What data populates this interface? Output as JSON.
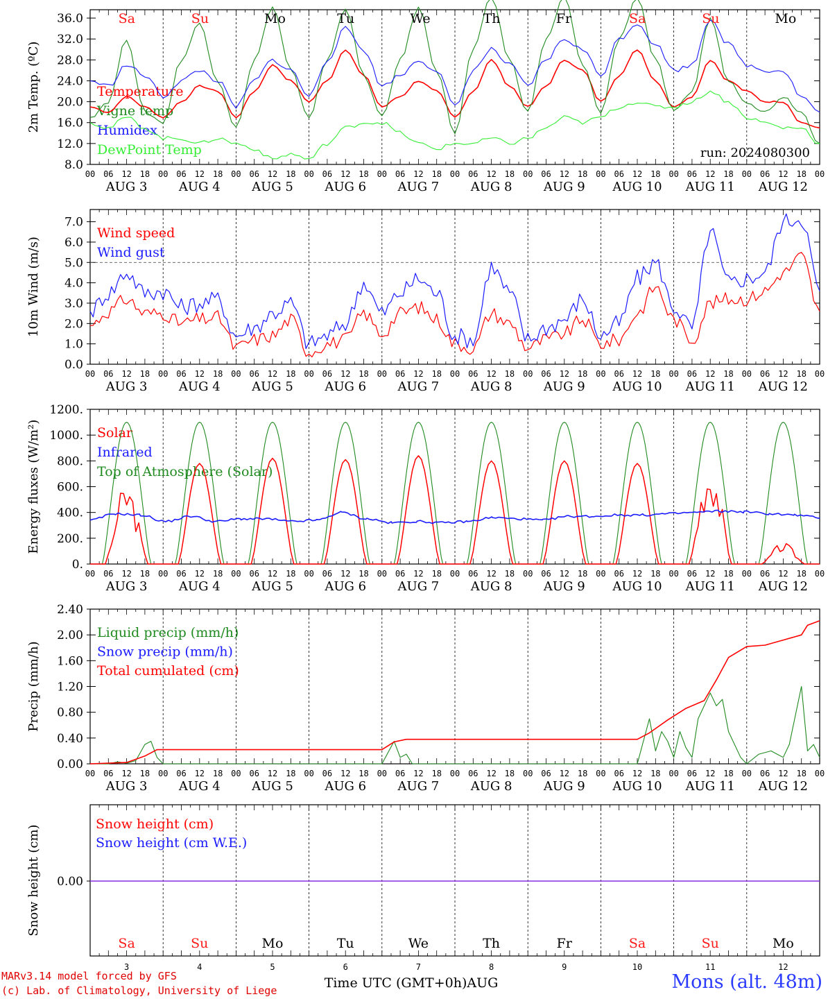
{
  "footer": {
    "credit_line1": "MARv3.14 model forced by GFS",
    "credit_line2": "(c) Lab. of Climatology, University of Liege",
    "station": "Mons (alt. 48m)",
    "xaxis_label": "Time UTC (GMT+0h)AUG"
  },
  "time_axis": {
    "hour_ticks": [
      "00",
      "06",
      "12",
      "18"
    ],
    "final_tick": "00",
    "day_labels": [
      "AUG  3",
      "AUG  4",
      "AUG  5",
      "AUG  6",
      "AUG  7",
      "AUG  8",
      "AUG  9",
      "AUG 10",
      "AUG 11",
      "AUG 12"
    ],
    "weekdays": [
      "Sa",
      "Su",
      "Mo",
      "Tu",
      "We",
      "Th",
      "Fr",
      "Sa",
      "Su",
      "Mo"
    ],
    "weekend_color": "#ff1a1a",
    "weekday_color": "#000000",
    "bottom_day_numbers": [
      "3",
      "4",
      "5",
      "6",
      "7",
      "8",
      "9",
      "10",
      "11",
      "12"
    ]
  },
  "colors": {
    "red": "#ff0000",
    "blue": "#1a1aff",
    "dark_green": "#1f8a1f",
    "light_green": "#33ee33",
    "purple": "#8a2be2"
  },
  "chart_data": [
    {
      "type": "line",
      "ylabel": "2m Temp. (ºC)",
      "ylim": [
        8,
        37.6
      ],
      "yticks": [
        "8.0",
        "12.0",
        "16.0",
        "20.0",
        "24.0",
        "28.0",
        "32.0",
        "36.0"
      ],
      "annotation": "run: 2024080300",
      "x": [
        0,
        6,
        12,
        18,
        24,
        30,
        36,
        42,
        48,
        54,
        60,
        66,
        72,
        78,
        84,
        90,
        96,
        102,
        108,
        114,
        120,
        126,
        132,
        138,
        144,
        150,
        156,
        162,
        168,
        174,
        180,
        186,
        192,
        198,
        204,
        210,
        216,
        222,
        228,
        234,
        240
      ],
      "series": [
        {
          "name": "Temperature",
          "color": "red",
          "values": [
            19,
            18,
            21,
            19,
            17,
            20,
            23,
            22,
            17,
            22,
            27,
            24,
            20,
            24,
            30,
            25,
            19,
            21,
            24,
            22,
            17,
            22,
            28,
            23,
            19,
            23,
            28,
            26,
            20,
            25,
            30,
            24,
            19,
            21,
            28,
            24,
            22,
            20,
            20,
            16,
            15
          ]
        },
        {
          "name": "Vigne temp",
          "color": "dark_green",
          "values": [
            17,
            20,
            32,
            18,
            16,
            28,
            35,
            24,
            15,
            28,
            38,
            26,
            17,
            28,
            38,
            25,
            17,
            28,
            38,
            26,
            14,
            30,
            40,
            28,
            18,
            32,
            40,
            27,
            18,
            32,
            40,
            28,
            18,
            22,
            36,
            24,
            20,
            18,
            21,
            18,
            12
          ]
        },
        {
          "name": "Humidex",
          "color": "blue",
          "values": [
            24,
            23,
            27,
            25,
            21,
            24,
            26,
            24,
            19,
            24,
            28,
            26,
            21,
            28,
            34,
            30,
            23,
            25,
            28,
            26,
            19,
            26,
            30,
            27,
            23,
            28,
            32,
            30,
            25,
            32,
            35,
            31,
            26,
            27,
            36,
            31,
            27,
            26,
            26,
            21,
            18
          ]
        },
        {
          "name": "DewPoint Temp",
          "color": "light_green",
          "values": [
            16,
            15,
            17,
            15,
            13,
            13,
            12,
            13,
            12,
            11,
            9,
            10,
            9,
            12,
            15,
            16,
            16,
            14,
            12,
            11,
            12,
            12,
            13,
            12,
            13,
            15,
            17,
            16,
            17,
            19,
            20,
            19,
            19,
            20,
            22,
            20,
            17,
            16,
            15,
            15,
            12
          ]
        }
      ]
    },
    {
      "type": "line",
      "ylabel": "10m Wind (m/s)",
      "ylim": [
        0,
        7.6
      ],
      "yticks": [
        "0.0",
        "1.0",
        "2.0",
        "3.0",
        "4.0",
        "5.0",
        "6.0",
        "7.0"
      ],
      "reference_line": 5.0,
      "x": [
        0,
        6,
        12,
        18,
        24,
        30,
        36,
        42,
        48,
        54,
        60,
        66,
        72,
        78,
        84,
        90,
        96,
        102,
        108,
        114,
        120,
        126,
        132,
        138,
        144,
        150,
        156,
        162,
        168,
        174,
        180,
        186,
        192,
        198,
        204,
        210,
        216,
        222,
        228,
        234,
        240
      ],
      "series": [
        {
          "name": "Wind speed",
          "color": "red",
          "values": [
            1.9,
            2.6,
            3.2,
            2.5,
            2.5,
            2.0,
            2.2,
            2.3,
            0.8,
            1.2,
            1.4,
            2.2,
            0.6,
            1.0,
            1.2,
            2.5,
            1.5,
            2.5,
            2.8,
            2.2,
            1.0,
            0.8,
            2.5,
            2.0,
            0.8,
            1.2,
            1.5,
            2.2,
            1.0,
            1.2,
            2.5,
            3.8,
            2.2,
            1.2,
            3.0,
            3.2,
            3.2,
            3.6,
            4.5,
            5.3,
            2.6
          ]
        },
        {
          "name": "Wind gust",
          "color": "blue",
          "values": [
            2.6,
            3.5,
            4.5,
            3.5,
            3.6,
            2.8,
            3.0,
            3.2,
            1.4,
            1.8,
            2.5,
            3.0,
            1.0,
            1.4,
            2.0,
            4.0,
            2.5,
            3.5,
            4.2,
            3.5,
            1.4,
            1.2,
            4.8,
            3.5,
            1.2,
            1.8,
            2.2,
            3.2,
            1.4,
            2.0,
            4.2,
            5.0,
            2.8,
            1.8,
            6.5,
            4.0,
            4.2,
            4.5,
            7.0,
            7.2,
            3.6
          ]
        }
      ]
    },
    {
      "type": "line",
      "ylabel": "Energy fluxes (W/m²)",
      "ylim": [
        0,
        1200
      ],
      "yticks": [
        "0.",
        "200.",
        "400.",
        "600.",
        "800.",
        "1000.",
        "1200."
      ],
      "solar_peaks": [
        500,
        780,
        820,
        810,
        840,
        800,
        800,
        780,
        650,
        130
      ],
      "toa_peak": 1100,
      "series": [
        {
          "name": "Solar",
          "color": "red"
        },
        {
          "name": "Infrared",
          "color": "blue",
          "values": [
            340,
            390,
            380,
            330,
            370,
            330,
            350,
            350,
            330,
            340,
            400,
            350,
            320,
            330,
            320,
            330,
            360,
            350,
            340,
            370,
            370,
            380,
            380,
            390,
            400,
            410,
            405,
            390,
            380,
            360
          ]
        },
        {
          "name": "Top of Atmosphere (Solar)",
          "color": "dark_green"
        }
      ]
    },
    {
      "type": "line",
      "ylabel": "Precip (mm/h)",
      "ylim": [
        0,
        2.4
      ],
      "yticks": [
        "0.00",
        "0.40",
        "0.80",
        "1.20",
        "1.60",
        "2.00",
        "2.40"
      ],
      "series": [
        {
          "name": "Liquid precip (mm/h)",
          "color": "dark_green",
          "points": [
            [
              0,
              0
            ],
            [
              6,
              0
            ],
            [
              9,
              0.03
            ],
            [
              12,
              0.01
            ],
            [
              15,
              0.05
            ],
            [
              18,
              0.3
            ],
            [
              20,
              0.35
            ],
            [
              22,
              0.1
            ],
            [
              24,
              0
            ],
            [
              96,
              0
            ],
            [
              100,
              0.35
            ],
            [
              102,
              0.1
            ],
            [
              104,
              0.15
            ],
            [
              106,
              0
            ],
            [
              180,
              0
            ],
            [
              184,
              0.7
            ],
            [
              186,
              0.2
            ],
            [
              188,
              0.5
            ],
            [
              190,
              0.35
            ],
            [
              192,
              0.1
            ],
            [
              194,
              0.5
            ],
            [
              196,
              0.25
            ],
            [
              198,
              0.1
            ],
            [
              200,
              0.7
            ],
            [
              204,
              1.1
            ],
            [
              206,
              0.9
            ],
            [
              208,
              1.0
            ],
            [
              210,
              0.5
            ],
            [
              214,
              0.1
            ],
            [
              216,
              0
            ],
            [
              220,
              0.15
            ],
            [
              224,
              0.2
            ],
            [
              226,
              0.15
            ],
            [
              228,
              0.1
            ],
            [
              230,
              0.3
            ],
            [
              234,
              1.2
            ],
            [
              236,
              0.2
            ],
            [
              238,
              0.3
            ],
            [
              240,
              0.1
            ]
          ]
        },
        {
          "name": "Snow precip (mm/h)",
          "color": "blue",
          "points": []
        },
        {
          "name": "Total cumulated (cm)",
          "color": "red",
          "points": [
            [
              0,
              0
            ],
            [
              12,
              0.02
            ],
            [
              18,
              0.12
            ],
            [
              22,
              0.22
            ],
            [
              96,
              0.22
            ],
            [
              100,
              0.34
            ],
            [
              104,
              0.38
            ],
            [
              180,
              0.38
            ],
            [
              184,
              0.48
            ],
            [
              190,
              0.68
            ],
            [
              196,
              0.86
            ],
            [
              202,
              0.98
            ],
            [
              206,
              1.3
            ],
            [
              210,
              1.65
            ],
            [
              216,
              1.82
            ],
            [
              222,
              1.84
            ],
            [
              228,
              1.92
            ],
            [
              234,
              2.0
            ],
            [
              236,
              2.15
            ],
            [
              240,
              2.22
            ]
          ]
        }
      ]
    },
    {
      "type": "line",
      "ylabel": "Snow height (cm)",
      "yticks": [
        "0.00"
      ],
      "series": [
        {
          "name": "Snow height (cm)",
          "color": "red",
          "values": [
            0,
            0
          ]
        },
        {
          "name": "Snow height (cm W.E.)",
          "color": "blue",
          "values": [
            0,
            0
          ]
        }
      ]
    }
  ]
}
